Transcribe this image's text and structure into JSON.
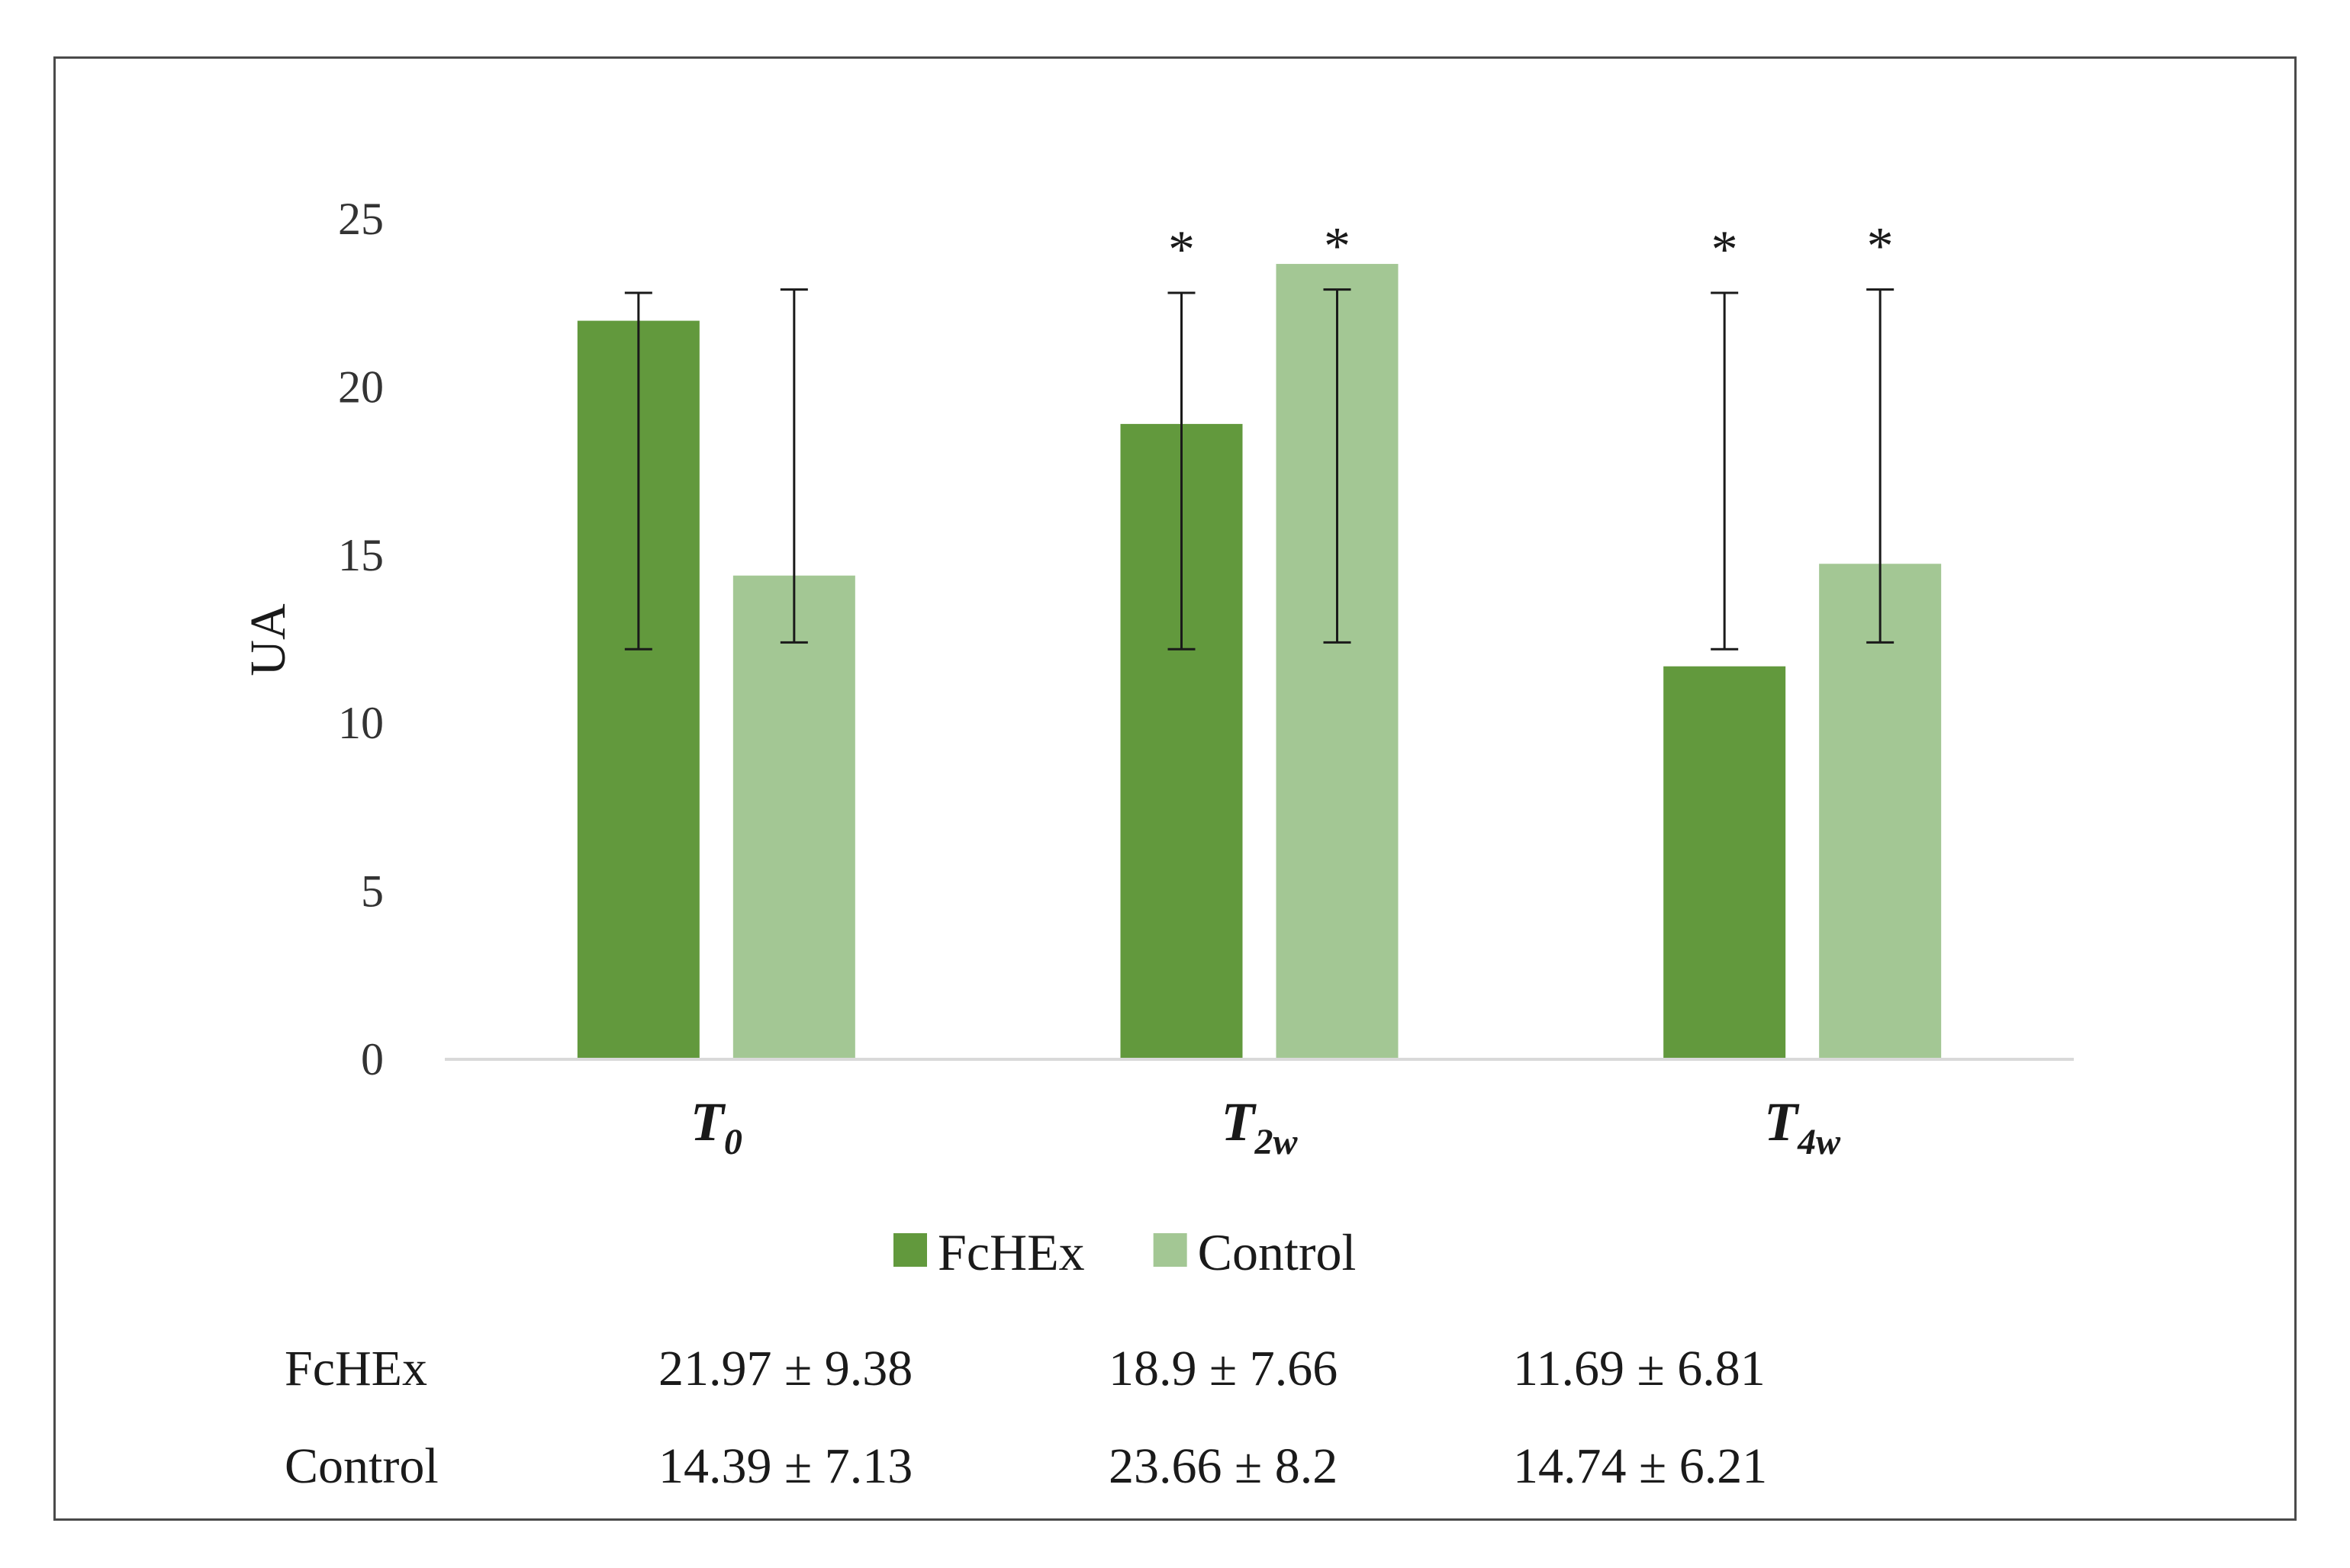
{
  "chart_data": {
    "type": "bar",
    "ylabel": "UA",
    "xlabel": "",
    "ylim": [
      0,
      25
    ],
    "yticks": [
      0,
      5,
      10,
      15,
      20,
      25
    ],
    "grid": false,
    "legend_position": "bottom-center",
    "categories": [
      {
        "main": "T",
        "sub": "0"
      },
      {
        "main": "T",
        "sub": "2w"
      },
      {
        "main": "T",
        "sub": "4w"
      }
    ],
    "series": [
      {
        "name": "FcHEx",
        "color": "#62993d",
        "values": [
          21.97,
          18.9,
          11.69
        ],
        "error_low": [
          12.2,
          12.2,
          12.2
        ],
        "error_high": [
          22.8,
          22.8,
          22.8
        ],
        "significance": [
          "",
          "*",
          "*"
        ]
      },
      {
        "name": "Control",
        "color": "#a3c794",
        "values": [
          14.39,
          23.66,
          14.74
        ],
        "error_low": [
          12.4,
          12.4,
          12.4
        ],
        "error_high": [
          22.9,
          22.9,
          22.9
        ],
        "significance": [
          "",
          "*",
          "*"
        ]
      }
    ]
  },
  "summary_table": {
    "rows": [
      {
        "label": "FcHEx",
        "cells": [
          "21.97 ± 9.38",
          "18.9 ± 7.66",
          "11.69 ± 6.81"
        ]
      },
      {
        "label": "Control",
        "cells": [
          "14.39 ± 7.13",
          "23.66 ± 8.2",
          "14.74 ± 6.21"
        ]
      }
    ]
  }
}
